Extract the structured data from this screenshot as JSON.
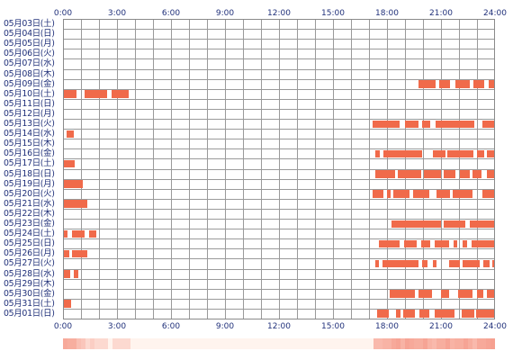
{
  "chart_data": {
    "type": "timeline",
    "x_tick_labels": [
      "0:00",
      "3:00",
      "6:00",
      "9:00",
      "12:00",
      "15:00",
      "18:00",
      "21:00",
      "24:00"
    ],
    "x_unit": "hour",
    "x_range": [
      0,
      24
    ],
    "bar_color": "#f06a4a",
    "grid": true,
    "rows": [
      {
        "label": "05月03日(土)",
        "intervals": []
      },
      {
        "label": "05月04日(日)",
        "intervals": []
      },
      {
        "label": "05月05日(月)",
        "intervals": []
      },
      {
        "label": "05月06日(火)",
        "intervals": []
      },
      {
        "label": "05月07日(水)",
        "intervals": []
      },
      {
        "label": "05月08日(木)",
        "intervals": []
      },
      {
        "label": "05月09日(金)",
        "intervals": [
          [
            19.75,
            20.7
          ],
          [
            20.9,
            21.5
          ],
          [
            21.8,
            22.6
          ],
          [
            22.8,
            23.4
          ],
          [
            23.65,
            24.0
          ]
        ]
      },
      {
        "label": "05月10日(土)",
        "intervals": [
          [
            0.0,
            0.75
          ],
          [
            1.2,
            2.45
          ],
          [
            2.7,
            3.65
          ]
        ]
      },
      {
        "label": "05月11日(日)",
        "intervals": []
      },
      {
        "label": "05月12日(月)",
        "intervals": []
      },
      {
        "label": "05月13日(火)",
        "intervals": [
          [
            17.2,
            18.7
          ],
          [
            19.0,
            19.75
          ],
          [
            19.95,
            20.4
          ],
          [
            20.7,
            22.85
          ],
          [
            23.3,
            24.0
          ]
        ]
      },
      {
        "label": "05月14日(水)",
        "intervals": [
          [
            0.2,
            0.6
          ]
        ]
      },
      {
        "label": "05月15日(木)",
        "intervals": []
      },
      {
        "label": "05月16日(金)",
        "intervals": [
          [
            17.35,
            17.6
          ],
          [
            17.8,
            19.95
          ],
          [
            20.55,
            21.25
          ],
          [
            21.35,
            22.8
          ],
          [
            23.0,
            23.4
          ],
          [
            23.55,
            24.0
          ]
        ]
      },
      {
        "label": "05月17日(土)",
        "intervals": [
          [
            0.0,
            0.65
          ]
        ]
      },
      {
        "label": "05月18日(日)",
        "intervals": [
          [
            17.35,
            18.45
          ],
          [
            18.6,
            19.9
          ],
          [
            20.05,
            21.0
          ],
          [
            21.15,
            21.8
          ],
          [
            22.05,
            22.6
          ],
          [
            22.75,
            23.25
          ],
          [
            23.55,
            24.0
          ]
        ]
      },
      {
        "label": "05月19日(月)",
        "intervals": [
          [
            0.0,
            1.1
          ]
        ]
      },
      {
        "label": "05月20日(火)",
        "intervals": [
          [
            17.2,
            17.8
          ],
          [
            18.0,
            18.2
          ],
          [
            18.35,
            19.25
          ],
          [
            19.45,
            20.35
          ],
          [
            20.75,
            21.5
          ],
          [
            21.65,
            22.75
          ],
          [
            23.3,
            24.0
          ]
        ]
      },
      {
        "label": "05月21日(水)",
        "intervals": [
          [
            0.0,
            1.35
          ]
        ]
      },
      {
        "label": "05月22日(木)",
        "intervals": []
      },
      {
        "label": "05月23日(金)",
        "intervals": [
          [
            18.25,
            21.0
          ],
          [
            21.15,
            22.35
          ],
          [
            22.6,
            24.0
          ]
        ]
      },
      {
        "label": "05月24日(土)",
        "intervals": [
          [
            0.0,
            0.25
          ],
          [
            0.5,
            1.2
          ],
          [
            1.45,
            1.85
          ]
        ]
      },
      {
        "label": "05月25日(日)",
        "intervals": [
          [
            17.55,
            18.7
          ],
          [
            18.95,
            19.65
          ],
          [
            19.9,
            20.4
          ],
          [
            20.65,
            21.45
          ],
          [
            21.7,
            21.9
          ],
          [
            22.2,
            22.45
          ],
          [
            22.7,
            24.0
          ]
        ]
      },
      {
        "label": "05月26日(月)",
        "intervals": [
          [
            0.0,
            0.35
          ],
          [
            0.5,
            1.35
          ]
        ]
      },
      {
        "label": "05月27日(火)",
        "intervals": [
          [
            17.35,
            17.55
          ],
          [
            17.75,
            19.75
          ],
          [
            19.95,
            20.25
          ],
          [
            20.55,
            20.75
          ],
          [
            21.45,
            22.05
          ],
          [
            22.2,
            23.15
          ],
          [
            23.35,
            23.7
          ],
          [
            23.85,
            24.0
          ]
        ]
      },
      {
        "label": "05月28日(水)",
        "intervals": [
          [
            0.0,
            0.4
          ],
          [
            0.6,
            0.85
          ]
        ]
      },
      {
        "label": "05月29日(木)",
        "intervals": []
      },
      {
        "label": "05月30日(金)",
        "intervals": [
          [
            18.15,
            19.55
          ],
          [
            19.75,
            20.5
          ],
          [
            21.0,
            21.45
          ],
          [
            21.95,
            22.75
          ],
          [
            23.0,
            23.35
          ],
          [
            23.55,
            24.0
          ]
        ]
      },
      {
        "label": "05月31日(土)",
        "intervals": [
          [
            0.05,
            0.45
          ]
        ]
      },
      {
        "label": "05月01日(日)",
        "intervals": [
          [
            17.45,
            18.1
          ],
          [
            18.5,
            18.75
          ],
          [
            18.9,
            19.55
          ],
          [
            19.8,
            20.35
          ],
          [
            20.65,
            21.75
          ],
          [
            22.15,
            22.85
          ],
          [
            22.95,
            24.0
          ]
        ]
      }
    ],
    "summary_strip": {
      "colors": {
        "low": "#fff4ee",
        "high": "#f6a090"
      }
    }
  }
}
